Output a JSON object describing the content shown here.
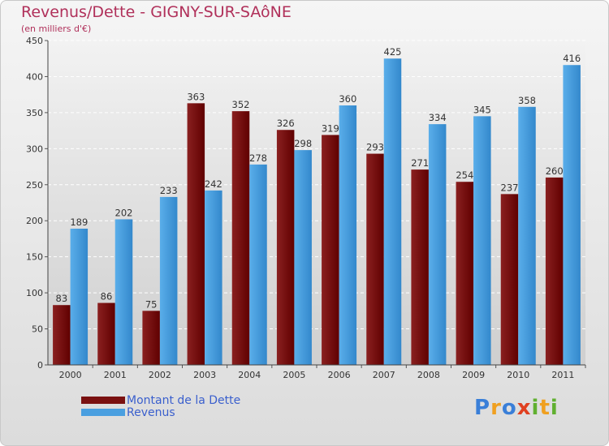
{
  "header": {
    "title": "Revenus/Dette - GIGNY-SUR-SAôNE",
    "subtitle": "(en milliers d'€)"
  },
  "legend": [
    {
      "label": "Montant de la Dette",
      "color": "#7a1010"
    },
    {
      "label": "Revenus",
      "color": "#4a9fe0"
    }
  ],
  "logo": {
    "letters": [
      {
        "char": "P",
        "color": "#3a7fd8"
      },
      {
        "char": "r",
        "color": "#f0a020"
      },
      {
        "char": "o",
        "color": "#3a7fd8"
      },
      {
        "char": "x",
        "color": "#e04020"
      },
      {
        "char": "i",
        "color": "#60b030"
      },
      {
        "char": "t",
        "color": "#f0a020"
      },
      {
        "char": "i",
        "color": "#60b030"
      }
    ]
  },
  "chart_data": {
    "type": "bar",
    "categories": [
      "2000",
      "2001",
      "2002",
      "2003",
      "2004",
      "2005",
      "2006",
      "2007",
      "2008",
      "2009",
      "2010",
      "2011"
    ],
    "series": [
      {
        "name": "Montant de la Dette",
        "color": "#7a1010",
        "values": [
          83,
          86,
          75,
          363,
          352,
          326,
          319,
          293,
          271,
          254,
          237,
          260
        ]
      },
      {
        "name": "Revenus",
        "color": "#4a9fe0",
        "values": [
          189,
          202,
          233,
          242,
          278,
          298,
          360,
          425,
          334,
          345,
          358,
          416
        ]
      }
    ],
    "ylim": [
      0,
      450
    ],
    "yticks": [
      0,
      50,
      100,
      150,
      200,
      250,
      300,
      350,
      400,
      450
    ],
    "grid": true,
    "legend_position": "bottom-left"
  }
}
